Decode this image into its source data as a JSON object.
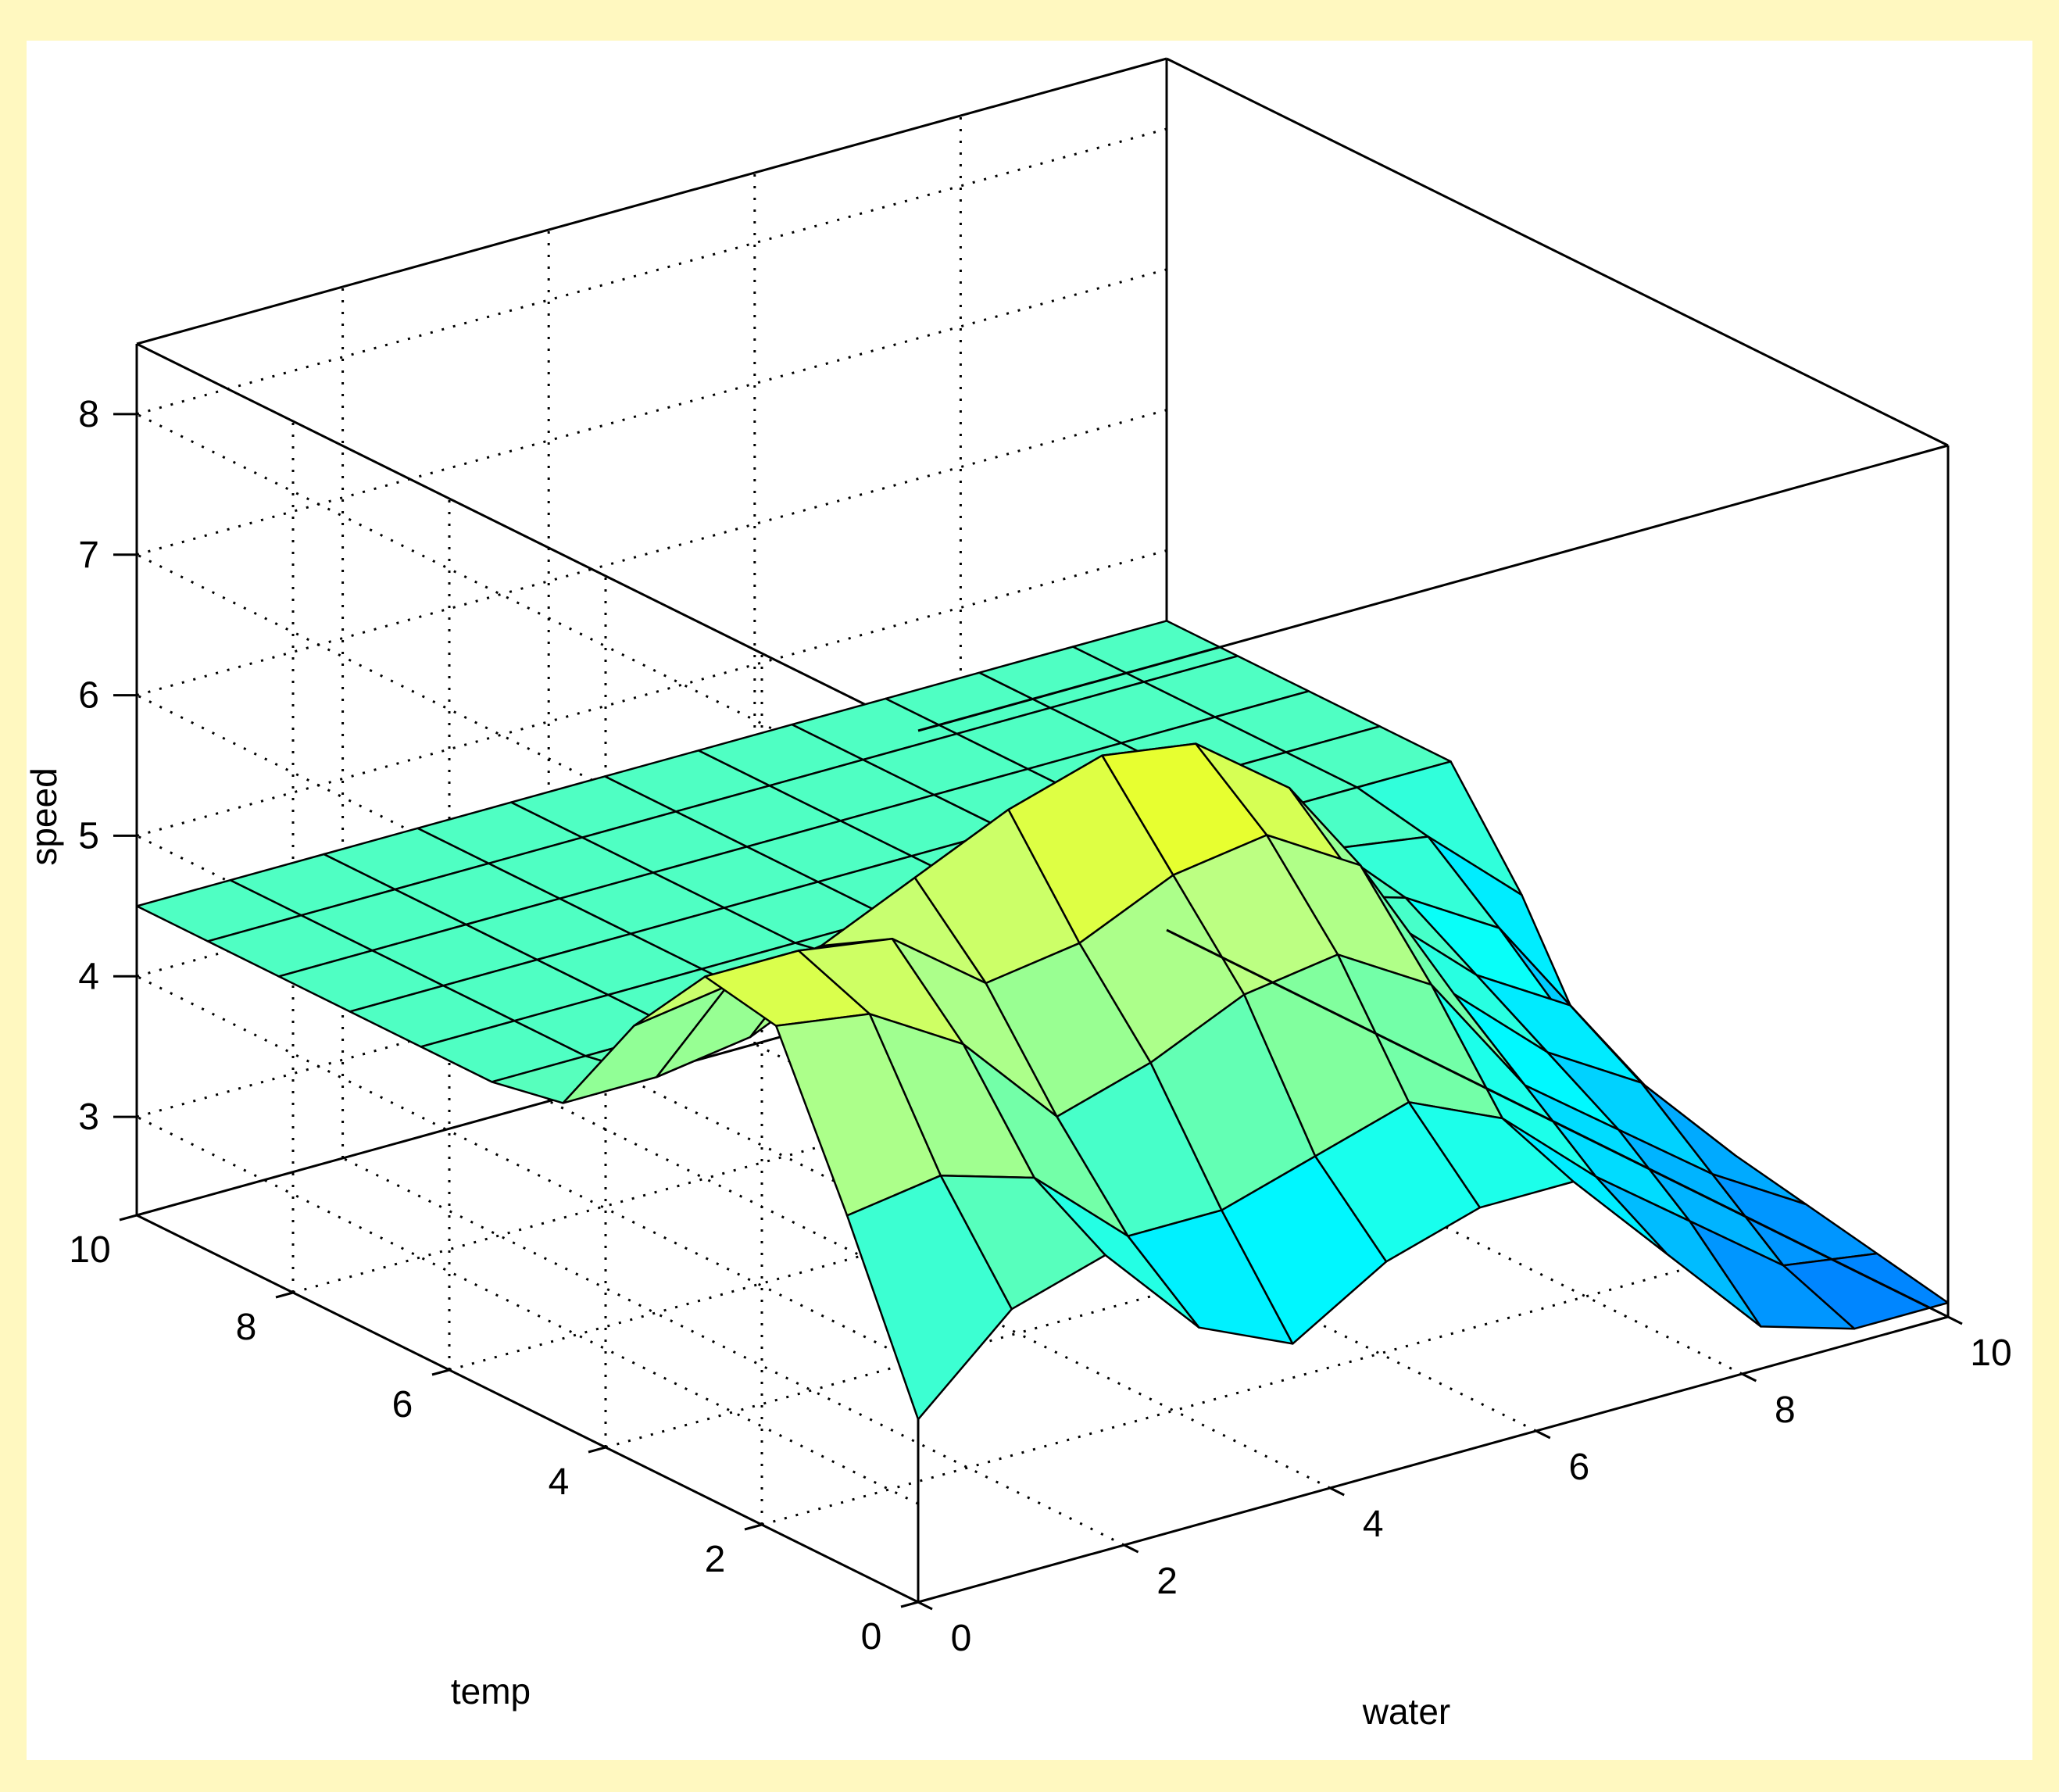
{
  "colors": {
    "figure_background": "#FFF8C0",
    "axes_background": "#FFFFFF",
    "mesh_edge": "#000000",
    "grid": "#000000",
    "colormap": [
      "#0080FF",
      "#00C0FF",
      "#00FFFF",
      "#7FFF9F",
      "#C0FF80",
      "#FFFF00"
    ]
  },
  "chart_data": {
    "type": "surface",
    "title": "",
    "xlabel": "water",
    "ylabel": "temp",
    "zlabel": "speed",
    "xlim": [
      0,
      10
    ],
    "ylim": [
      0,
      10
    ],
    "zlim": [
      2.3,
      8.5
    ],
    "xticks": [
      0,
      2,
      4,
      6,
      8,
      10
    ],
    "yticks": [
      0,
      2,
      4,
      6,
      8,
      10
    ],
    "zticks": [
      3,
      4,
      5,
      6,
      7,
      8
    ],
    "grid": true,
    "box": true,
    "colormap": "jet",
    "x": [
      0,
      0.9091,
      1.8182,
      2.7273,
      3.6364,
      4.5455,
      5.4545,
      6.3636,
      7.2727,
      8.1818,
      9.0909,
      10
    ],
    "y": [
      0,
      0.9091,
      1.8182,
      2.7273,
      3.6364,
      4.5455,
      5.4545,
      6.3636,
      7.2727,
      8.1818,
      9.0909,
      10
    ],
    "z": [
      [
        3.6,
        4.2,
        4.4,
        3.7,
        3.4,
        3.8,
        4.0,
        4.0,
        3.3,
        2.6,
        2.4,
        2.4
      ],
      [
        4.8,
        4.9,
        4.7,
        4.1,
        4.1,
        4.3,
        4.5,
        4.2,
        3.6,
        3.1,
        2.6,
        2.5
      ],
      [
        5.9,
        5.8,
        5.4,
        4.7,
        4.9,
        5.2,
        5.3,
        4.9,
        4.0,
        3.5,
        3.0,
        2.6
      ],
      [
        6.0,
        6.0,
        5.9,
        5.4,
        5.5,
        5.8,
        5.9,
        5.5,
        4.4,
        3.8,
        3.4,
        2.7
      ],
      [
        5.4,
        5.5,
        5.6,
        5.9,
        6.2,
        6.4,
        6.3,
        5.8,
        4.7,
        4.1,
        3.7,
        2.8
      ],
      [
        4.6,
        4.6,
        4.7,
        5.0,
        5.4,
        5.6,
        5.4,
        5.0,
        4.6,
        4.4,
        4.0,
        2.9
      ],
      [
        4.5,
        4.5,
        4.5,
        4.5,
        4.6,
        4.6,
        4.6,
        4.5,
        4.5,
        4.5,
        4.4,
        3.8
      ],
      [
        4.5,
        4.5,
        4.5,
        4.5,
        4.5,
        4.5,
        4.5,
        4.5,
        4.5,
        4.5,
        4.5,
        4.5
      ],
      [
        4.5,
        4.5,
        4.5,
        4.5,
        4.5,
        4.5,
        4.5,
        4.5,
        4.5,
        4.5,
        4.5,
        4.5
      ],
      [
        4.5,
        4.5,
        4.5,
        4.5,
        4.5,
        4.5,
        4.5,
        4.5,
        4.5,
        4.5,
        4.5,
        4.5
      ],
      [
        4.5,
        4.5,
        4.5,
        4.5,
        4.5,
        4.5,
        4.5,
        4.5,
        4.5,
        4.5,
        4.5,
        4.5
      ],
      [
        4.5,
        4.5,
        4.5,
        4.5,
        4.5,
        4.5,
        4.5,
        4.5,
        4.5,
        4.5,
        4.5,
        4.5
      ]
    ]
  }
}
